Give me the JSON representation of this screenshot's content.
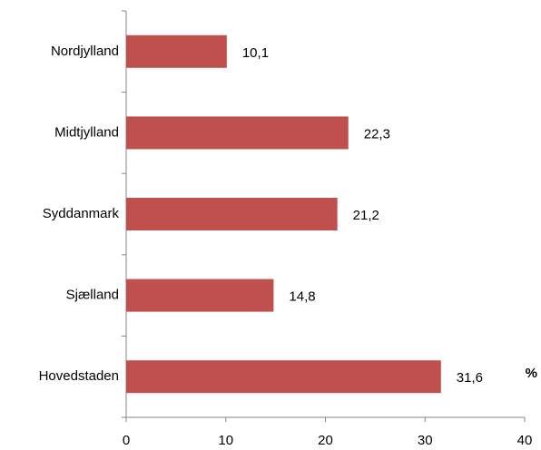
{
  "chart_data": {
    "type": "hbar",
    "categories": [
      "Nordjylland",
      "Midtjylland",
      "Syddanmark",
      "Sjælland",
      "Hovedstaden"
    ],
    "values": [
      10.1,
      22.3,
      21.2,
      14.8,
      31.6
    ],
    "value_labels": [
      "10,1",
      "22,3",
      "21,2",
      "14,8",
      "31,6"
    ],
    "color": "#c0504d",
    "xlim": [
      0,
      40
    ],
    "xticks": [
      0,
      10,
      20,
      30,
      40
    ],
    "annotation": "%"
  }
}
